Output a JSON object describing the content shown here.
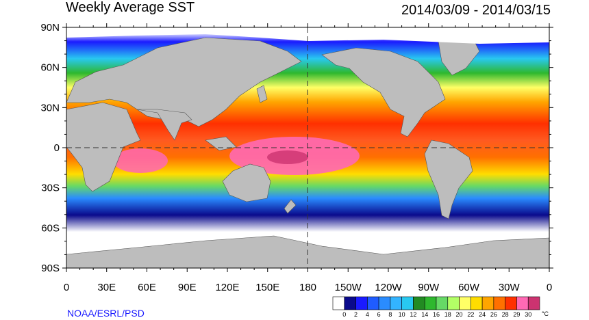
{
  "title": "Weekly Average SST",
  "dates": "2014/03/09 - 2014/03/15",
  "credit": "NOAA/ESRL/PSD",
  "y_labels": [
    "90N",
    "60N",
    "30N",
    "0",
    "30S",
    "60S",
    "90S"
  ],
  "x_labels": [
    "0",
    "30E",
    "60E",
    "90E",
    "120E",
    "150E",
    "180",
    "150W",
    "120W",
    "90W",
    "60W",
    "30W",
    "0"
  ],
  "colorbar": {
    "ticks": [
      "0",
      "2",
      "4",
      "6",
      "8",
      "10",
      "12",
      "14",
      "16",
      "18",
      "20",
      "22",
      "24",
      "26",
      "28",
      "29",
      "30"
    ],
    "unit": "°C",
    "colors": [
      "#ffffff",
      "#0a0a8c",
      "#1a1aff",
      "#1f5cff",
      "#2a8cff",
      "#33b4ff",
      "#28c8f0",
      "#228b22",
      "#2eb82e",
      "#66d966",
      "#b3ff66",
      "#ffff66",
      "#ffdd00",
      "#ffa500",
      "#ff7000",
      "#ff3000",
      "#ff69b4",
      "#cc3370"
    ]
  },
  "colors": {
    "land": "#bdbdbd",
    "ice": "#ffffff",
    "credit": "#1a1aff"
  }
}
